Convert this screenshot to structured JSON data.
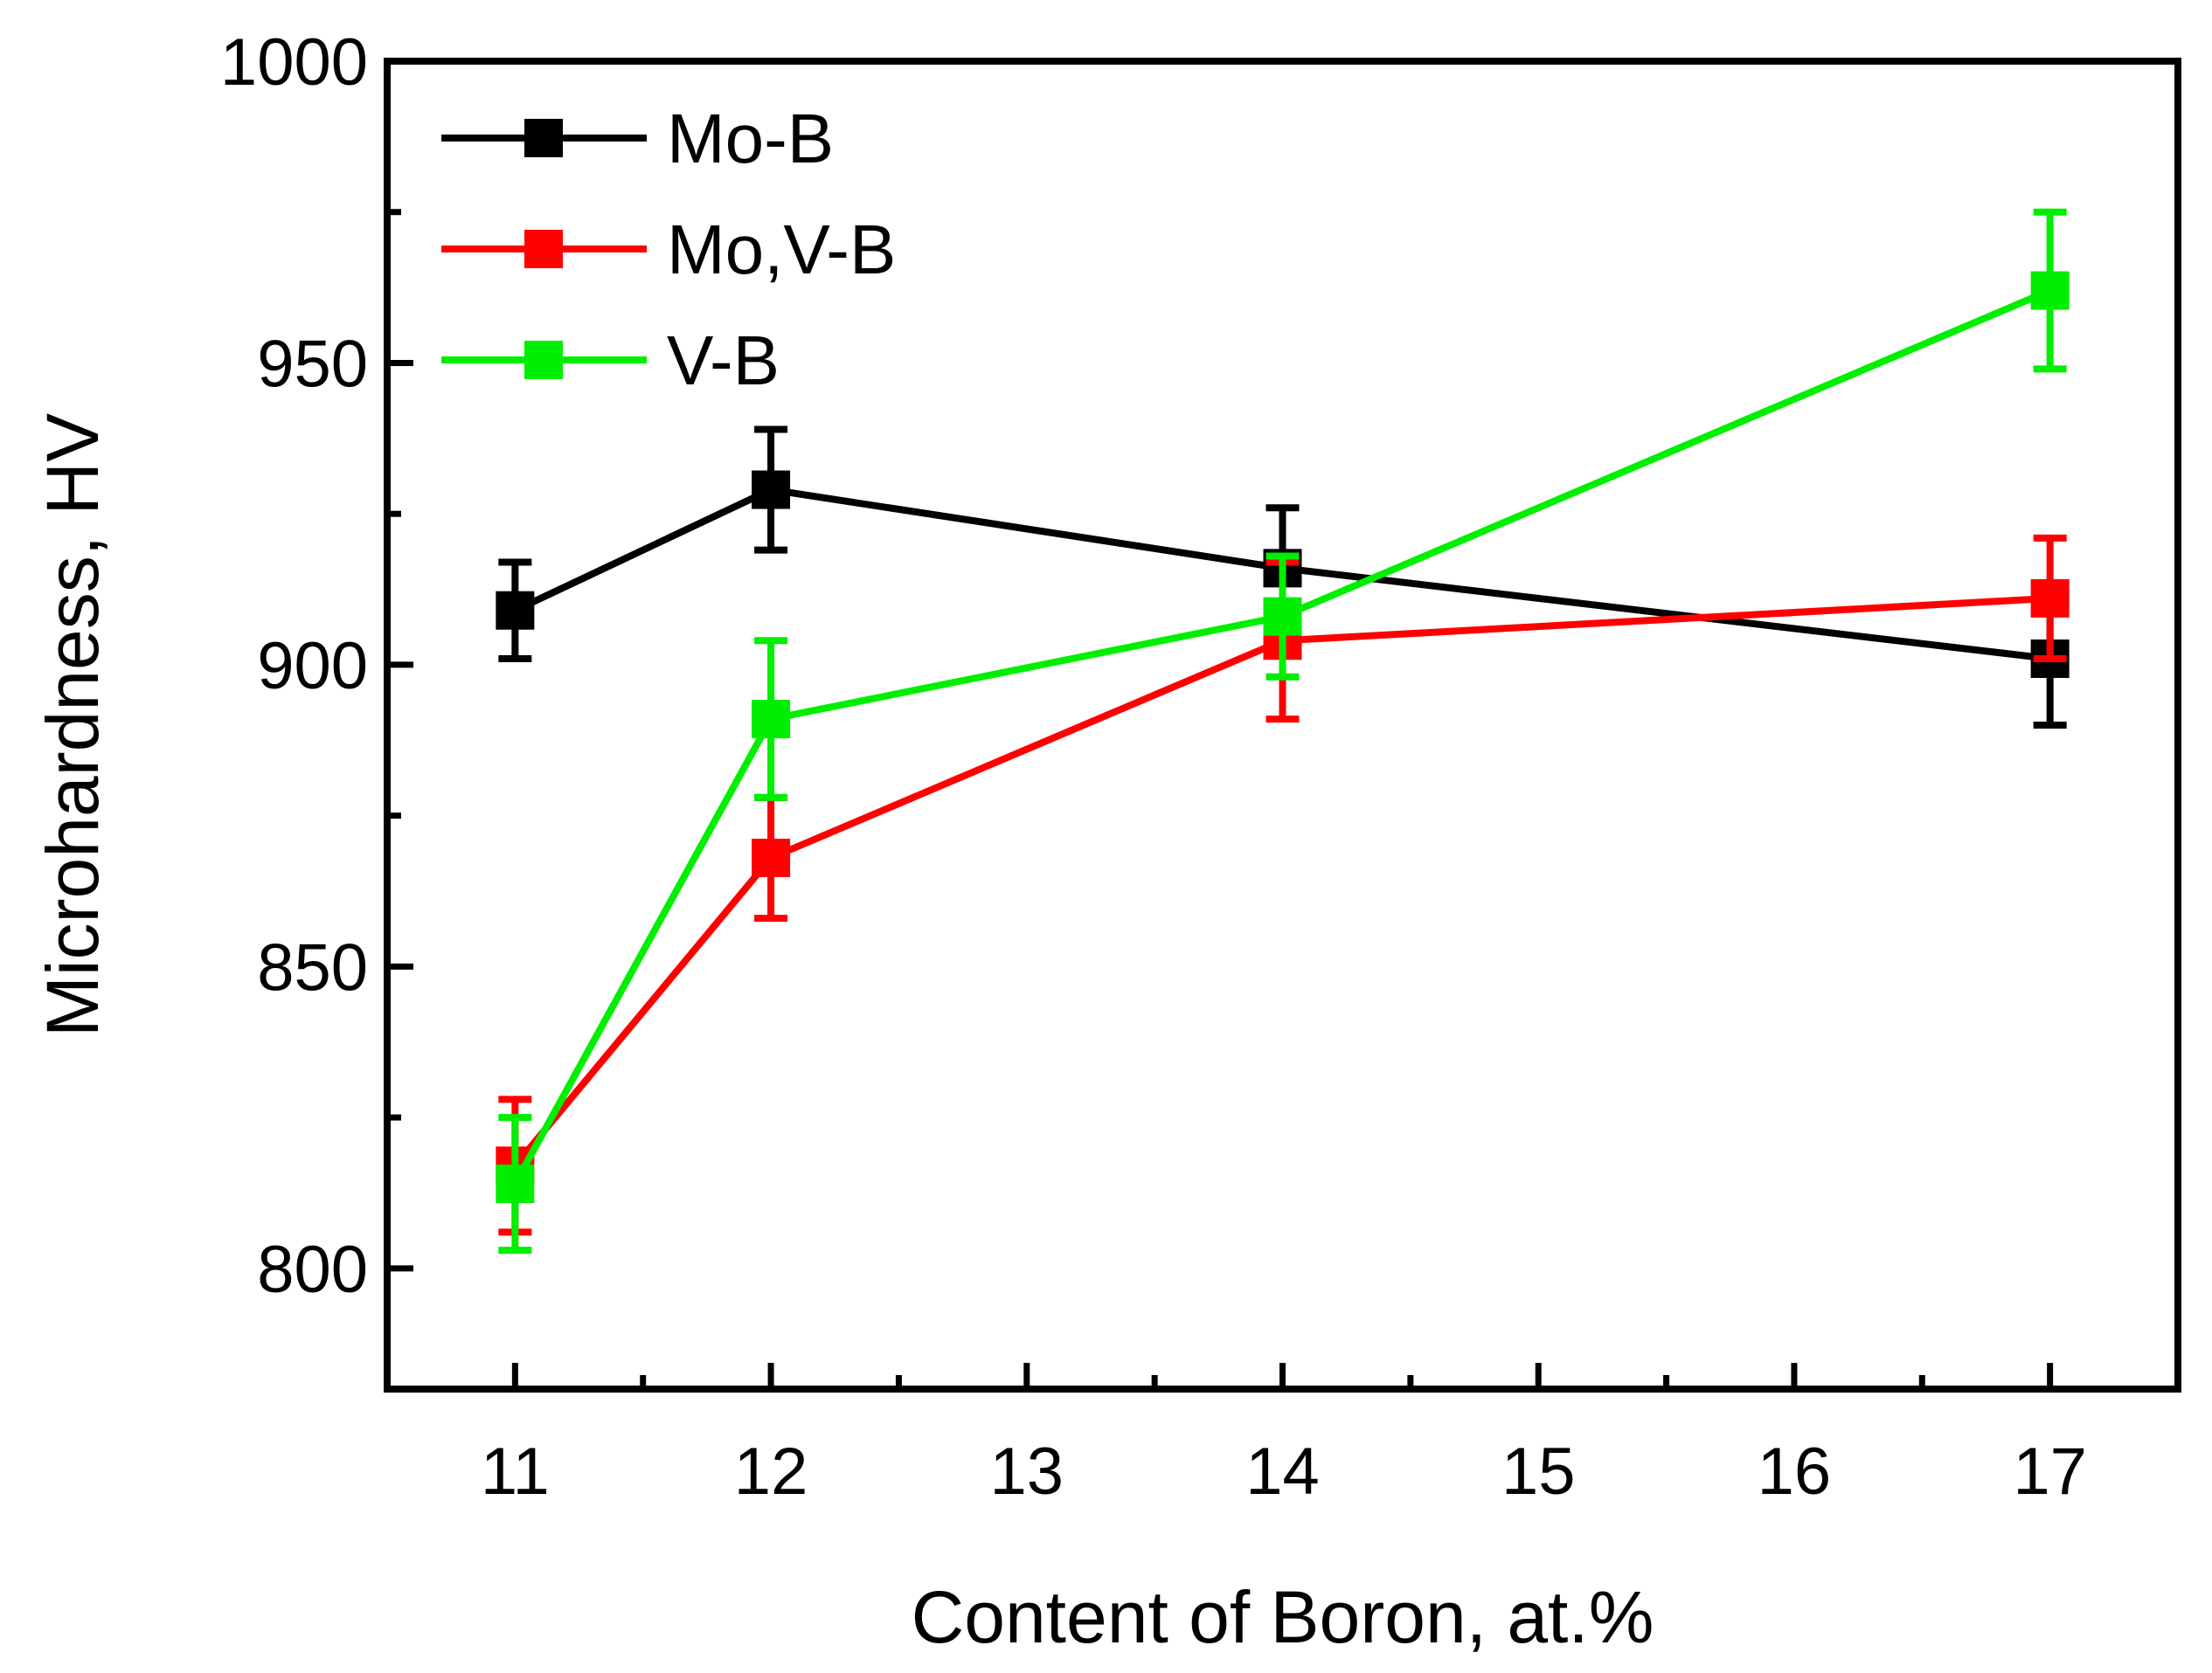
{
  "chart_data": {
    "type": "line",
    "xlabel": "Content of Boron, at.%",
    "ylabel": "Microhardness, HV",
    "xlim": [
      10.5,
      17.5
    ],
    "ylim": [
      780,
      1000
    ],
    "x_ticks": [
      "11",
      "12",
      "13",
      "14",
      "15",
      "16",
      "17"
    ],
    "y_ticks": [
      "800",
      "850",
      "900",
      "950",
      "1000"
    ],
    "legend_position": "top-left",
    "series": [
      {
        "name": "Mo-B",
        "color": "#000000",
        "points": [
          {
            "x": 11,
            "y": 909,
            "err": 8
          },
          {
            "x": 12,
            "y": 929,
            "err": 10
          },
          {
            "x": 14,
            "y": 916,
            "err": 10
          },
          {
            "x": 17,
            "y": 901,
            "err": 11
          }
        ]
      },
      {
        "name": "Mo,V-B",
        "color": "#ff0000",
        "points": [
          {
            "x": 11,
            "y": 817,
            "err": 11
          },
          {
            "x": 12,
            "y": 868,
            "err": 10
          },
          {
            "x": 14,
            "y": 904,
            "err": 13
          },
          {
            "x": 17,
            "y": 911,
            "err": 10
          }
        ]
      },
      {
        "name": "V-B",
        "color": "#00ee00",
        "points": [
          {
            "x": 11,
            "y": 814,
            "err": 11
          },
          {
            "x": 12,
            "y": 891,
            "err": 13
          },
          {
            "x": 14,
            "y": 908,
            "err": 10
          },
          {
            "x": 17,
            "y": 962,
            "err": 13
          }
        ]
      }
    ]
  }
}
